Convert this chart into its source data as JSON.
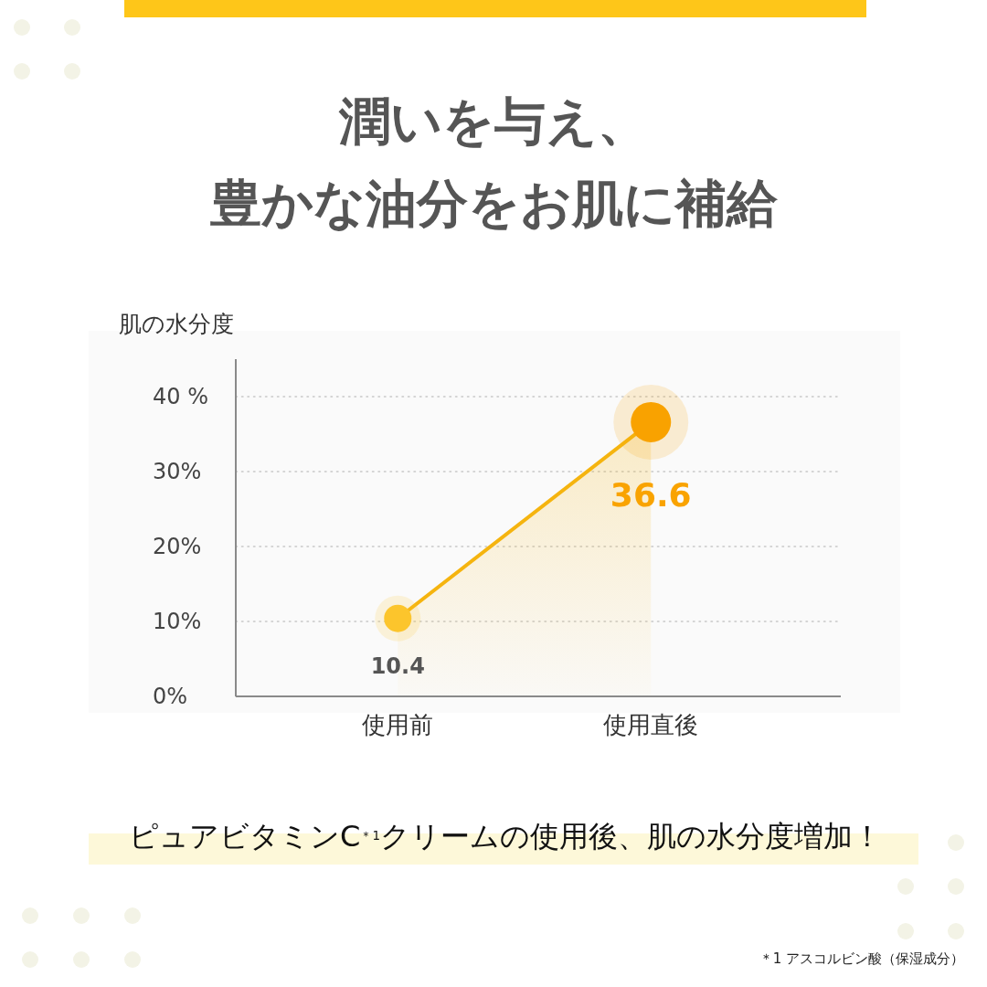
{
  "chart_data": {
    "type": "area",
    "title": "潤いを与え、豊かな油分をお肌に補給",
    "ylabel": "肌の水分度",
    "categories": [
      "使用前",
      "使用直後"
    ],
    "series": [
      {
        "values": [
          10.4,
          36.6
        ],
        "color": "#f5b40f",
        "colors": [
          "#fcc52d",
          "#f9a300"
        ]
      }
    ],
    "ylim": [
      0,
      45
    ],
    "yticks": [
      {
        "value": 0,
        "label": "0%"
      },
      {
        "value": 10,
        "label": "10%"
      },
      {
        "value": 20,
        "label": "20%"
      },
      {
        "value": 30,
        "label": "30%"
      },
      {
        "value": 40,
        "label": "40 %"
      }
    ],
    "grid": "y",
    "marker": "circle",
    "data_labels": true,
    "annotations": [
      "ピュアビタミンC$^{＊1}$クリームの使用後、肌の水分度増加！",
      "＊1 アスコルビン酸（保湿成分）"
    ]
  }
}
